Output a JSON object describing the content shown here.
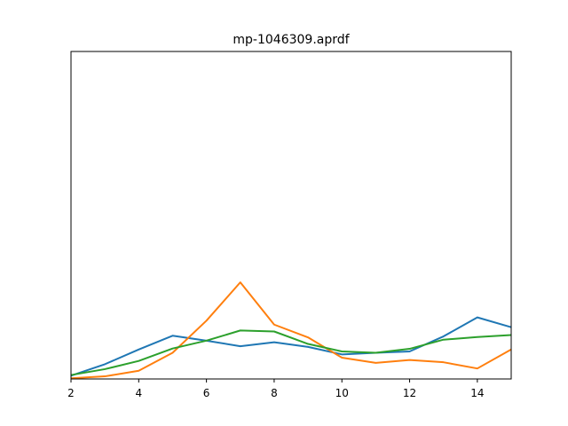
{
  "chart_data": {
    "type": "line",
    "title": "mp-1046309.aprdf",
    "xlabel": "",
    "ylabel": "",
    "xlim": [
      2,
      15
    ],
    "ylim": [
      0,
      1
    ],
    "x_ticks": [
      "2",
      "4",
      "6",
      "8",
      "10",
      "12",
      "14"
    ],
    "y_ticks": [],
    "grid": false,
    "legend": "none",
    "x": [
      2,
      3,
      4,
      5,
      6,
      7,
      8,
      9,
      10,
      11,
      12,
      13,
      14,
      15
    ],
    "series": [
      {
        "color": "#1f77b4",
        "values": [
          0.01,
          0.045,
          0.09,
          0.132,
          0.117,
          0.1,
          0.112,
          0.098,
          0.075,
          0.08,
          0.084,
          0.13,
          0.188,
          0.158
        ]
      },
      {
        "color": "#ff7f0e",
        "values": [
          0.002,
          0.008,
          0.025,
          0.08,
          0.178,
          0.295,
          0.166,
          0.127,
          0.065,
          0.049,
          0.058,
          0.051,
          0.032,
          0.09
        ]
      },
      {
        "color": "#2ca02c",
        "values": [
          0.012,
          0.03,
          0.055,
          0.093,
          0.117,
          0.148,
          0.145,
          0.107,
          0.084,
          0.08,
          0.092,
          0.12,
          0.128,
          0.134
        ]
      }
    ]
  }
}
